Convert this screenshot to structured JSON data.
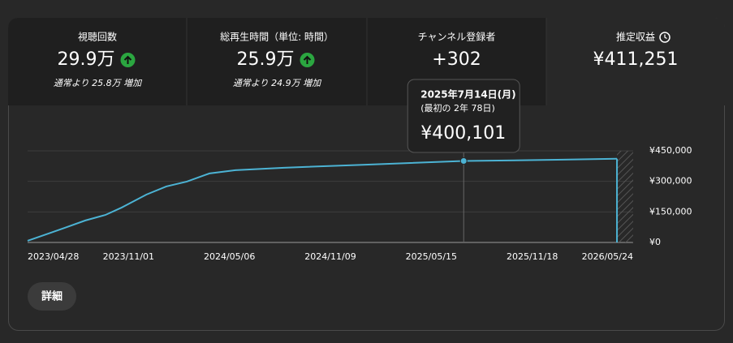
{
  "metrics": [
    {
      "label": "視聴回数",
      "value": "29.9万",
      "note": "通常より 25.8万 増加",
      "trend": "up"
    },
    {
      "label": "総再生時間（単位: 時間）",
      "value": "25.9万",
      "note": "通常より 24.9万 増加",
      "trend": "up"
    },
    {
      "label": "チャンネル登録者",
      "value": "+302"
    },
    {
      "label": "推定収益",
      "value": "¥411,251",
      "selected": true,
      "clock": true
    }
  ],
  "chart_data": {
    "type": "line",
    "color": "#4cb3d4",
    "x": [
      "2023/04/28",
      "2023/06/06",
      "2023/07/06",
      "2023/08/13",
      "2023/09/19",
      "2023/10/19",
      "2023/12/04",
      "2024/01/10",
      "2024/02/17",
      "2024/03/30",
      "2024/05/17",
      "2024/08/15",
      "2025/01/13",
      "2025/07/14",
      "2026/01/03",
      "2026/04/24"
    ],
    "values": [
      8000,
      44000,
      72000,
      108000,
      135000,
      171000,
      235000,
      275000,
      299000,
      339000,
      355000,
      367000,
      382000,
      400101,
      406000,
      411251
    ],
    "value_labels": [
      null,
      null,
      null,
      null,
      null,
      null,
      null,
      null,
      null,
      null,
      null,
      null,
      null,
      "¥400,101",
      null,
      null
    ],
    "tooltip_title": "2025年7月14日(月)",
    "tooltip_note": "(最初の 2年 78日)",
    "xlim": [
      "2023/04/28",
      "2026/05/24"
    ],
    "xticks": [
      "2023/04/28",
      "2023/11/01",
      "2024/05/06",
      "2024/11/09",
      "2025/05/15",
      "2025/11/18",
      "2026/05/24"
    ],
    "ylim": [
      0,
      450000
    ],
    "yticks": [
      {
        "value": 0,
        "label": "¥0"
      },
      {
        "value": 150000,
        "label": "¥150,000"
      },
      {
        "value": 300000,
        "label": "¥300,000"
      },
      {
        "value": 450000,
        "label": "¥450,000"
      }
    ],
    "grid": true
  },
  "button": "詳細"
}
